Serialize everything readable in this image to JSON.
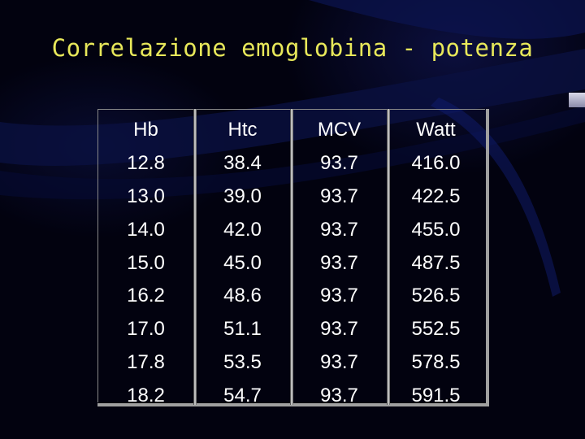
{
  "title": "Correlazione emoglobina - potenza",
  "table": {
    "headers": [
      "Hb",
      "Htc",
      "MCV",
      "Watt"
    ],
    "rows": [
      [
        "12.8",
        "38.4",
        "93.7",
        "416.0"
      ],
      [
        "13.0",
        "39.0",
        "93.7",
        "422.5"
      ],
      [
        "14.0",
        "42.0",
        "93.7",
        "455.0"
      ],
      [
        "15.0",
        "45.0",
        "93.7",
        "487.5"
      ],
      [
        "16.2",
        "48.6",
        "93.7",
        "526.5"
      ],
      [
        "17.0",
        "51.1",
        "93.7",
        "552.5"
      ],
      [
        "17.8",
        "53.5",
        "93.7",
        "578.5"
      ],
      [
        "18.2",
        "54.7",
        "93.7",
        "591.5"
      ]
    ]
  },
  "colors": {
    "title": "#e8e85a",
    "text": "#ffffff",
    "background": "#02020f"
  }
}
